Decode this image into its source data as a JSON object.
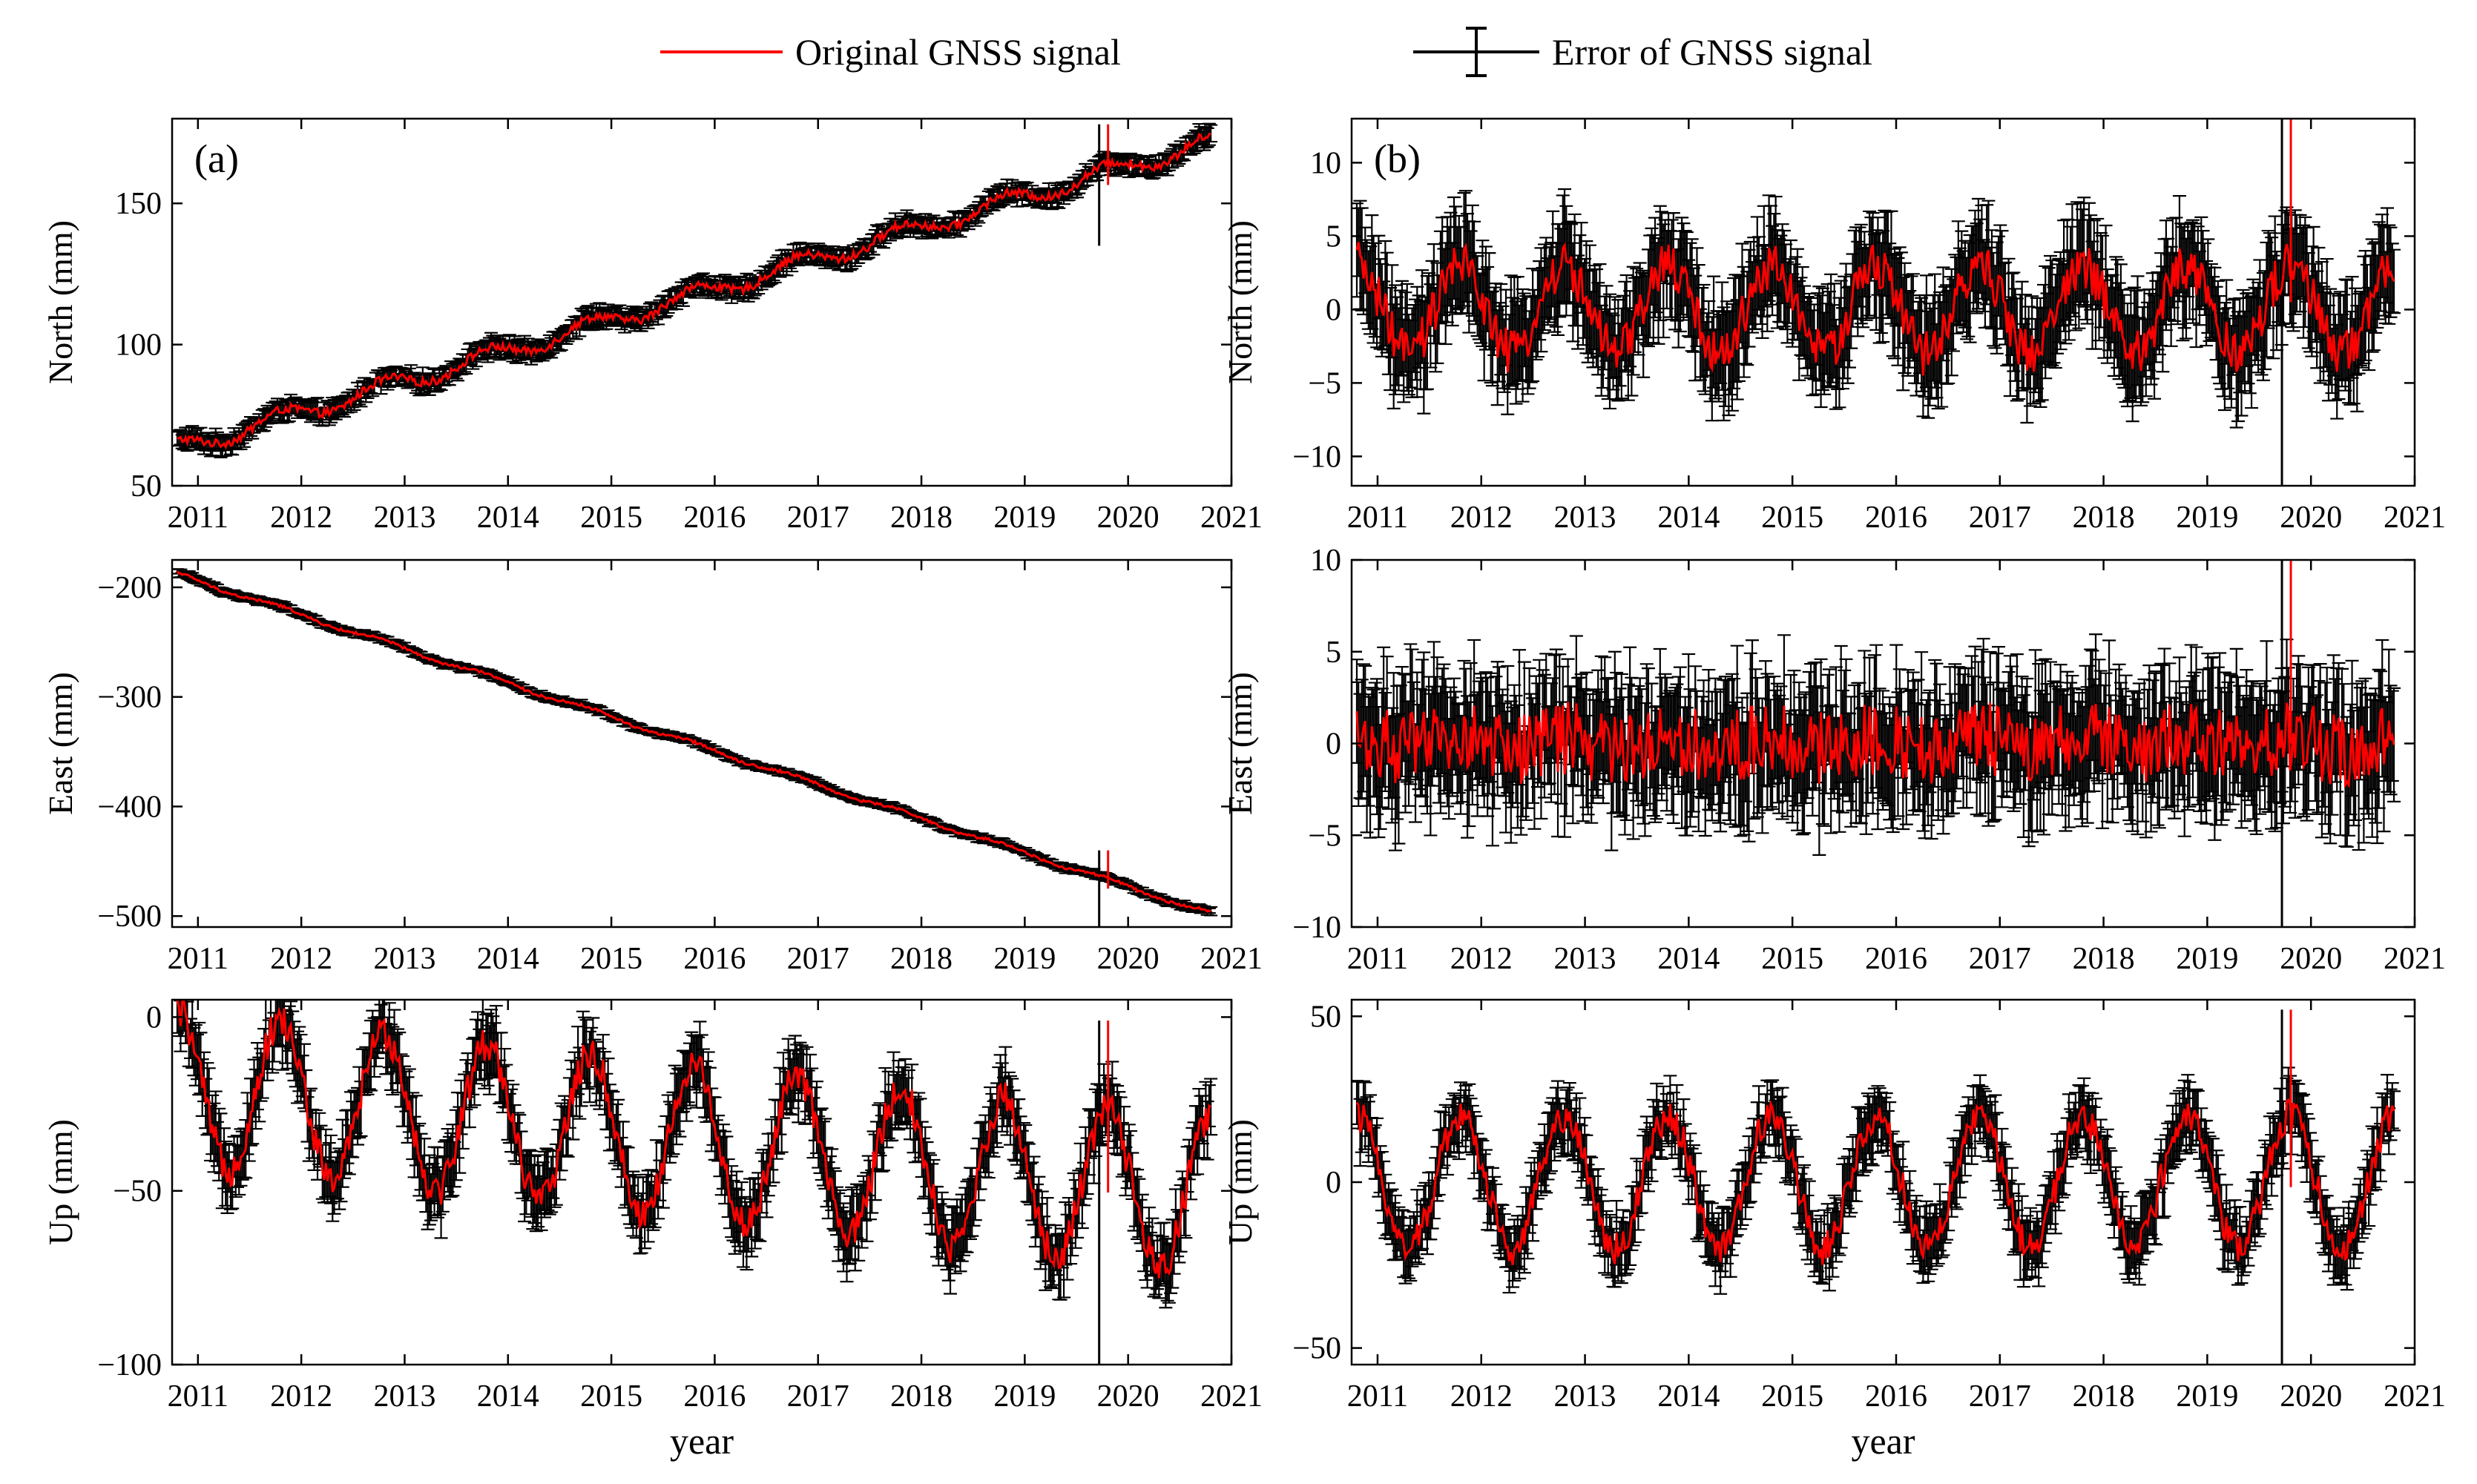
{
  "legend": {
    "signal_label": "Original GNSS signal",
    "error_label": "Error of GNSS signal",
    "signal_color": "#ff0000",
    "error_color": "#000000"
  },
  "chart_data": [
    {
      "id": "a-north",
      "type": "line",
      "column": "a",
      "row": 0,
      "panel_label": "(a)",
      "ylabel": "North (mm)",
      "xlabel": "",
      "xlim": [
        2010.75,
        2021.0
      ],
      "ylim": [
        50,
        180
      ],
      "yticks": [
        50,
        100,
        150
      ],
      "xticks": [
        2011,
        2012,
        2013,
        2014,
        2015,
        2016,
        2017,
        2018,
        2019,
        2020,
        2021
      ],
      "series": [
        {
          "name": "Original GNSS signal",
          "trend": [
            2010.8,
            63,
            2020.8,
            172
          ],
          "seasonal_amp": 3,
          "noise": 1.5,
          "error": 3
        }
      ],
      "outliers": [
        {
          "x": 2019.72,
          "y_low": 135,
          "y_high": 178
        }
      ]
    },
    {
      "id": "a-east",
      "type": "line",
      "column": "a",
      "row": 1,
      "panel_label": "",
      "ylabel": "East (mm)",
      "xlabel": "",
      "xlim": [
        2010.75,
        2021.0
      ],
      "ylim": [
        -510,
        -175
      ],
      "yticks": [
        -500,
        -400,
        -300,
        -200
      ],
      "xticks": [
        2011,
        2012,
        2013,
        2014,
        2015,
        2016,
        2017,
        2018,
        2019,
        2020,
        2021
      ],
      "series": [
        {
          "name": "Original GNSS signal",
          "trend": [
            2010.8,
            -188,
            2020.8,
            -498
          ],
          "seasonal_amp": 2,
          "noise": 1.2,
          "error": 3
        }
      ],
      "outliers": [
        {
          "x": 2019.72,
          "y_low": -510,
          "y_high": -440
        }
      ]
    },
    {
      "id": "a-up",
      "type": "line",
      "column": "a",
      "row": 2,
      "panel_label": "",
      "ylabel": "Up (mm)",
      "xlabel": "year",
      "xlim": [
        2010.75,
        2021.0
      ],
      "ylim": [
        -100,
        5
      ],
      "yticks": [
        -100,
        -50,
        0
      ],
      "xticks": [
        2011,
        2012,
        2013,
        2014,
        2015,
        2016,
        2017,
        2018,
        2019,
        2020,
        2021
      ],
      "series": [
        {
          "name": "Original GNSS signal",
          "trend": [
            2010.8,
            -20,
            2020.8,
            -52
          ],
          "seasonal_amp": 22,
          "noise": 5,
          "error": 8
        }
      ],
      "outliers": [
        {
          "x": 2019.72,
          "y_low": -100,
          "y_high": -1
        }
      ]
    },
    {
      "id": "b-north",
      "type": "line",
      "column": "b",
      "row": 0,
      "panel_label": "(b)",
      "ylabel": "North (mm)",
      "xlabel": "",
      "xlim": [
        2010.75,
        2021.0
      ],
      "ylim": [
        -12,
        13
      ],
      "yticks": [
        -10,
        -5,
        0,
        5,
        10
      ],
      "xticks": [
        2011,
        2012,
        2013,
        2014,
        2015,
        2016,
        2017,
        2018,
        2019,
        2020,
        2021
      ],
      "series": [
        {
          "name": "Original GNSS signal",
          "trend": [
            2010.8,
            0,
            2020.8,
            0
          ],
          "seasonal_amp": 3,
          "noise": 1.6,
          "error": 3
        }
      ],
      "outliers": [
        {
          "x": 2019.72,
          "y_low": -12,
          "y_high": 13
        }
      ]
    },
    {
      "id": "b-east",
      "type": "line",
      "column": "b",
      "row": 1,
      "panel_label": "",
      "ylabel": "East (mm)",
      "xlabel": "",
      "xlim": [
        2010.75,
        2021.0
      ],
      "ylim": [
        -10,
        10
      ],
      "yticks": [
        -10,
        -5,
        0,
        5,
        10
      ],
      "xticks": [
        2011,
        2012,
        2013,
        2014,
        2015,
        2016,
        2017,
        2018,
        2019,
        2020,
        2021
      ],
      "series": [
        {
          "name": "Original GNSS signal",
          "trend": [
            2010.8,
            0,
            2020.8,
            0
          ],
          "seasonal_amp": 0.3,
          "noise": 2.0,
          "error": 3
        }
      ],
      "outliers": [
        {
          "x": 2019.72,
          "y_low": -10,
          "y_high": 10
        }
      ]
    },
    {
      "id": "b-up",
      "type": "line",
      "column": "b",
      "row": 2,
      "panel_label": "",
      "ylabel": "Up (mm)",
      "xlabel": "year",
      "xlim": [
        2010.75,
        2021.0
      ],
      "ylim": [
        -55,
        55
      ],
      "yticks": [
        -50,
        0,
        50
      ],
      "xticks": [
        2011,
        2012,
        2013,
        2014,
        2015,
        2016,
        2017,
        2018,
        2019,
        2020,
        2021
      ],
      "series": [
        {
          "name": "Original GNSS signal",
          "trend": [
            2010.8,
            0,
            2020.8,
            0
          ],
          "seasonal_amp": 20,
          "noise": 5,
          "error": 8
        }
      ],
      "outliers": [
        {
          "x": 2019.72,
          "y_low": -55,
          "y_high": 52
        }
      ]
    }
  ]
}
